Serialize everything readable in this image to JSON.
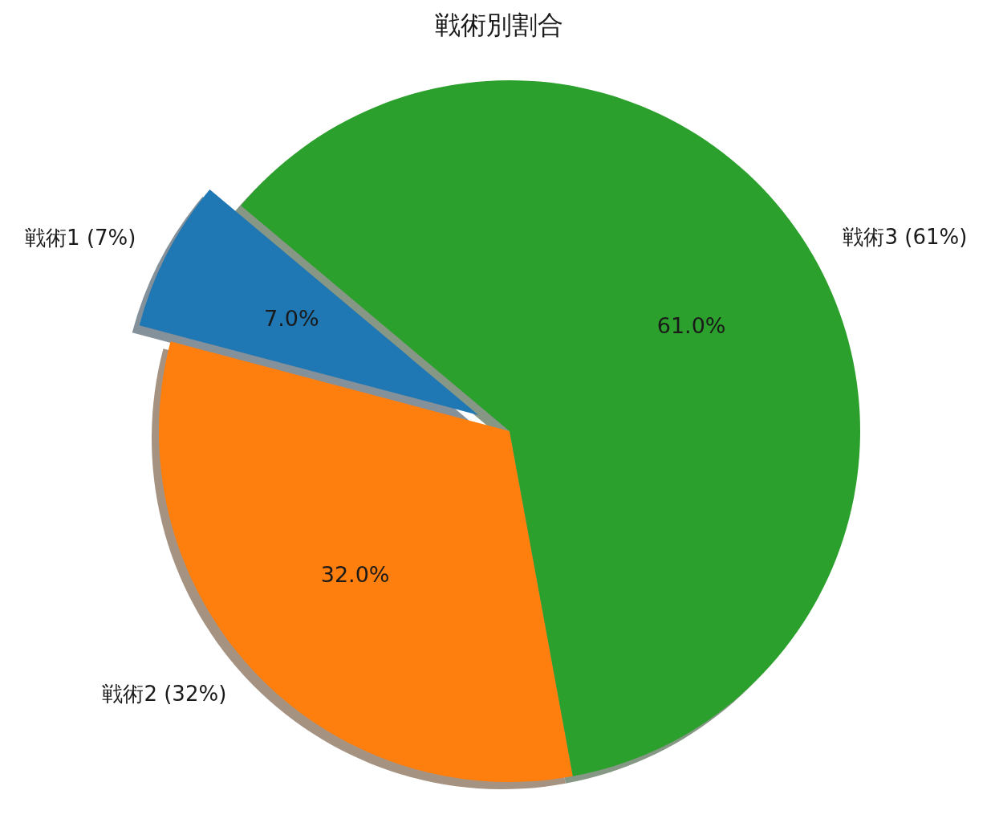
{
  "chart_data": {
    "type": "pie",
    "title": "戦術別割合",
    "categories": [
      "戦術1 (7%)",
      "戦術2 (32%)",
      "戦術3 (61%)"
    ],
    "values": [
      7,
      32,
      61
    ],
    "colors": [
      "#1f77b4",
      "#ff7f0e",
      "#2ca02c"
    ],
    "value_labels": [
      "7.0%",
      "32.0%",
      "61.0%"
    ]
  }
}
